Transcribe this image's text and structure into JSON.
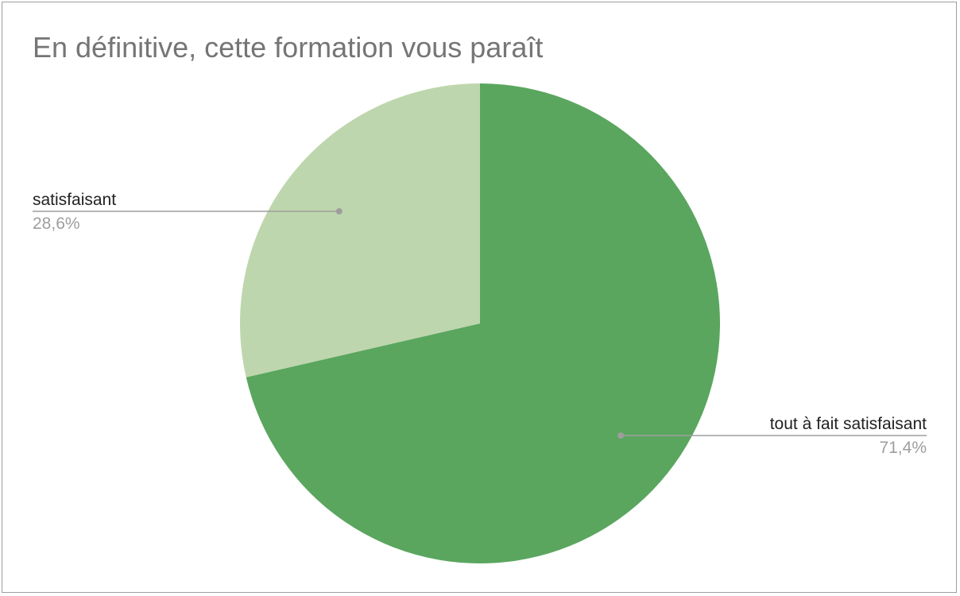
{
  "chart_data": {
    "type": "pie",
    "title": "En définitive, cette formation vous paraît",
    "slices": [
      {
        "label": "tout à fait satisfaisant",
        "value": 71.4,
        "percent_label": "71,4%",
        "color": "#5aa65f",
        "label_side": "right"
      },
      {
        "label": "satisfaisant",
        "value": 28.6,
        "percent_label": "28,6%",
        "color": "#bed6ad",
        "label_side": "left"
      }
    ],
    "start_angle_deg": 0,
    "direction": "clockwise",
    "legend": "none",
    "label_style": "callout"
  },
  "colors": {
    "title": "#757575",
    "border": "#9e9e9e",
    "leader_line": "#9e9e9e",
    "label_name": "#222222",
    "label_percent": "#9e9e9e"
  }
}
